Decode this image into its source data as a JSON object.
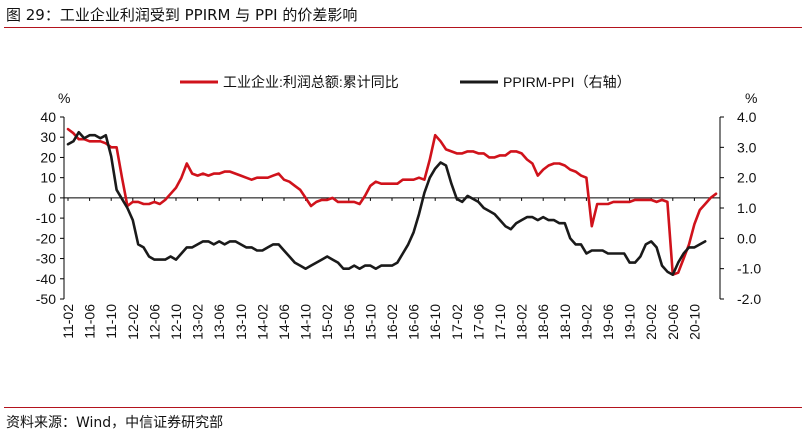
{
  "title": "图 29：工业企业利润受到 PPIRM 与 PPI 的价差影响",
  "source": "资料来源：Wind，中信证券研究部",
  "chart_data": {
    "type": "line",
    "y_left_unit": "%",
    "y_right_unit": "%",
    "y_left_range": [
      -50,
      40
    ],
    "y_left_ticks": [
      "40",
      "30",
      "20",
      "10",
      "0",
      "-10",
      "-20",
      "-30",
      "-40",
      "-50"
    ],
    "y_right_range": [
      -2.0,
      4.0
    ],
    "y_right_ticks": [
      "4.0",
      "3.0",
      "2.0",
      "1.0",
      "0.0",
      "-1.0",
      "-2.0"
    ],
    "x_tick_labels": [
      "11-02",
      "11-06",
      "11-10",
      "12-02",
      "12-06",
      "12-10",
      "13-02",
      "13-06",
      "13-10",
      "14-02",
      "14-06",
      "14-10",
      "15-02",
      "15-06",
      "15-10",
      "16-02",
      "16-06",
      "16-10",
      "17-02",
      "17-06",
      "17-10",
      "18-02",
      "18-06",
      "18-10",
      "19-02",
      "19-06",
      "19-10",
      "20-02",
      "20-06",
      "20-10"
    ],
    "legend_position": "top",
    "grid": false,
    "series": [
      {
        "name": "工业企业:利润总额:累计同比",
        "axis": "left",
        "color": "#d0121b",
        "values": [
          34,
          32,
          29,
          29,
          28,
          28,
          28,
          27,
          25,
          25,
          10,
          -4,
          -2,
          -2,
          -3,
          -3,
          -2,
          -3,
          -1,
          2,
          5,
          10,
          17,
          12,
          11,
          12,
          11,
          12,
          12,
          13,
          13,
          12,
          11,
          10,
          9,
          10,
          10,
          10,
          11,
          12,
          9,
          8,
          6,
          4,
          0,
          -4,
          -2,
          -1,
          -1,
          0,
          -2,
          -2,
          -2,
          -2,
          -3,
          1,
          6,
          8,
          7,
          7,
          7,
          7,
          9,
          9,
          9,
          10,
          9,
          19,
          31,
          28,
          24,
          23,
          22,
          22,
          23,
          23,
          22,
          22,
          20,
          20,
          21,
          21,
          23,
          23,
          22,
          19,
          17,
          11,
          14,
          16,
          17,
          17,
          16,
          14,
          13,
          11,
          10,
          -14,
          -3,
          -3,
          -3,
          -2,
          -2,
          -2,
          -2,
          -1,
          -1,
          -1,
          -1,
          -2,
          -1,
          -2,
          -38,
          -37,
          -30,
          -23,
          -13,
          -6,
          -3,
          0,
          2
        ]
      },
      {
        "name": "PPIRM-PPI（右轴）",
        "axis": "right",
        "color": "#1a1a1a",
        "values": [
          3.1,
          3.2,
          3.5,
          3.3,
          3.4,
          3.4,
          3.3,
          3.4,
          2.7,
          1.6,
          1.3,
          1.0,
          0.6,
          -0.2,
          -0.3,
          -0.6,
          -0.7,
          -0.7,
          -0.7,
          -0.6,
          -0.7,
          -0.5,
          -0.3,
          -0.3,
          -0.2,
          -0.1,
          -0.1,
          -0.2,
          -0.1,
          -0.2,
          -0.1,
          -0.1,
          -0.2,
          -0.3,
          -0.3,
          -0.4,
          -0.4,
          -0.3,
          -0.2,
          -0.2,
          -0.4,
          -0.6,
          -0.8,
          -0.9,
          -1.0,
          -0.9,
          -0.8,
          -0.7,
          -0.6,
          -0.7,
          -0.8,
          -1.0,
          -1.0,
          -0.9,
          -1.0,
          -0.9,
          -0.9,
          -1.0,
          -0.9,
          -0.9,
          -0.9,
          -0.8,
          -0.5,
          -0.2,
          0.2,
          0.8,
          1.5,
          2.0,
          2.3,
          2.5,
          2.4,
          1.8,
          1.3,
          1.2,
          1.4,
          1.3,
          1.2,
          1.0,
          0.9,
          0.8,
          0.6,
          0.4,
          0.3,
          0.5,
          0.6,
          0.7,
          0.7,
          0.6,
          0.7,
          0.6,
          0.6,
          0.5,
          0.5,
          0.0,
          -0.2,
          -0.2,
          -0.5,
          -0.4,
          -0.4,
          -0.4,
          -0.5,
          -0.5,
          -0.5,
          -0.5,
          -0.8,
          -0.8,
          -0.6,
          -0.2,
          -0.1,
          -0.3,
          -0.9,
          -1.1,
          -1.2,
          -0.8,
          -0.5,
          -0.3,
          -0.3,
          -0.2,
          -0.1
        ]
      }
    ]
  }
}
